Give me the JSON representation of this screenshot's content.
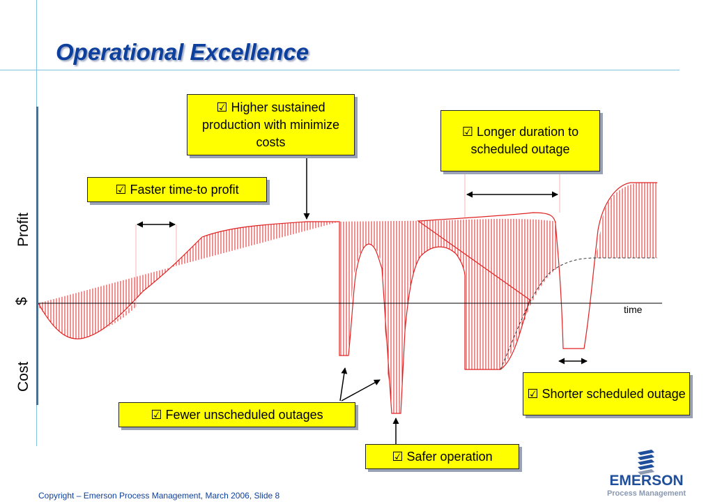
{
  "title": "Operational Excellence",
  "axis_labels": {
    "profit": "Profit",
    "dollar": "$",
    "cost": "Cost",
    "time": "time"
  },
  "callouts": {
    "higher": "Higher sustained production with minimize costs",
    "longer": "Longer duration to scheduled outage",
    "faster": "Faster time-to profit",
    "fewer": "Fewer unscheduled outages",
    "shorter": "Shorter scheduled outage",
    "safer": "Safer operation"
  },
  "checkbox_glyph": "☑",
  "footer": "Copyright – Emerson Process Management, March 2006, Slide 8",
  "logo": {
    "word": "EMERSON",
    "sub": "Process Management"
  },
  "colors": {
    "title": "#0d3f9c",
    "callout_fill": "#ffff00",
    "curve": "#e02020",
    "accent_lines": "#7fc4e0"
  }
}
